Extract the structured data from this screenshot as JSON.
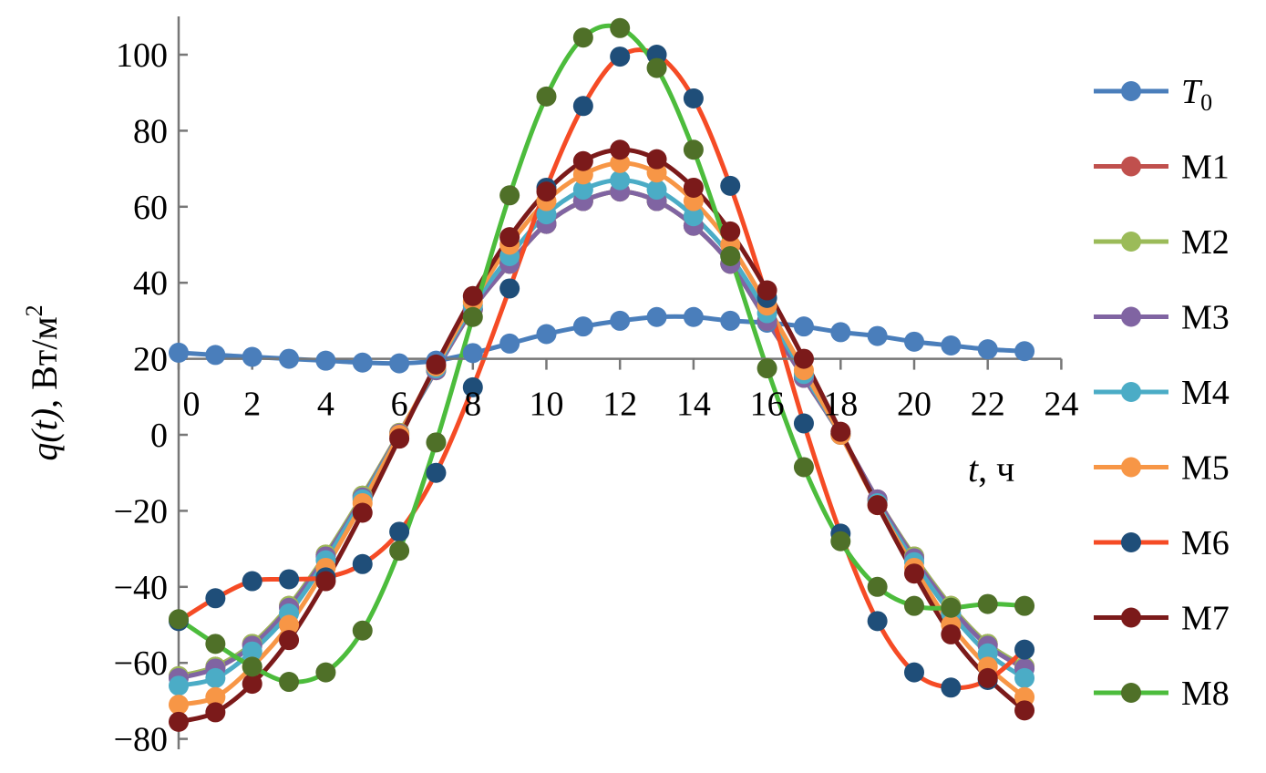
{
  "chart_data": {
    "type": "line",
    "title": "",
    "xlabel_italic": "t",
    "xlabel_unit": "ч",
    "ylabel_italic": "q(t)",
    "ylabel_unit": "Вт/м",
    "ylabel_unit_sup": "2",
    "xlim": [
      0,
      24
    ],
    "ylim": [
      -80,
      110
    ],
    "x_axis_crosses_at": 20,
    "xticks": [
      "0",
      "2",
      "4",
      "6",
      "8",
      "10",
      "12",
      "14",
      "16",
      "18",
      "20",
      "22",
      "24"
    ],
    "yticks": [
      "−80",
      "−60",
      "−40",
      "−20",
      "0",
      "20",
      "40",
      "60",
      "80",
      "100"
    ],
    "grid": false,
    "legend_position": "right",
    "x": [
      0,
      1,
      2,
      3,
      4,
      5,
      6,
      7,
      8,
      9,
      10,
      11,
      12,
      13,
      14,
      15,
      16,
      17,
      18,
      19,
      20,
      21,
      22,
      23
    ],
    "series": [
      {
        "name": "T",
        "name_sub": "0",
        "line_color": "#4a7ebb",
        "marker_color": "#4a7ebb",
        "values": [
          21.6,
          21,
          20.5,
          20,
          19.5,
          19,
          18.8,
          19.5,
          21.5,
          24,
          26.5,
          28.5,
          30,
          31,
          31,
          30,
          29.5,
          28.5,
          27,
          26,
          24.5,
          23.5,
          22.5,
          22
        ]
      },
      {
        "name": "M1",
        "line_color": "#c0504d",
        "marker_color": "#c0504d",
        "values": [
          -63.5,
          -61,
          -55,
          -45,
          -31.5,
          -16,
          0.5,
          17,
          33,
          45,
          55.5,
          61.5,
          64,
          61.5,
          55,
          45,
          30,
          15,
          0,
          -17,
          -32,
          -45,
          -55,
          -61
        ]
      },
      {
        "name": "M2",
        "line_color": "#9bbb59",
        "marker_color": "#9bbb59",
        "values": [
          -63.5,
          -61,
          -55,
          -45,
          -31.5,
          -16,
          0.5,
          17,
          33,
          45,
          55.5,
          61.5,
          64,
          61.5,
          55,
          45,
          30,
          15,
          0,
          -17,
          -32,
          -45,
          -55,
          -61
        ]
      },
      {
        "name": "M3",
        "line_color": "#8064a2",
        "marker_color": "#8064a2",
        "values": [
          -64,
          -61.5,
          -55.5,
          -45.5,
          -32,
          -16.5,
          0.3,
          17,
          33,
          45,
          55.5,
          61.5,
          64,
          61.5,
          55,
          45,
          30,
          15,
          0,
          -17,
          -32.5,
          -45.5,
          -55.5,
          -61.5
        ]
      },
      {
        "name": "M4",
        "line_color": "#4bacc6",
        "marker_color": "#4bacc6",
        "values": [
          -66,
          -64,
          -57,
          -47,
          -33,
          -17,
          0,
          17.5,
          34,
          47,
          58,
          64.5,
          67,
          64.5,
          57.5,
          47,
          32,
          16,
          0,
          -18,
          -33.5,
          -47,
          -57.5,
          -64
        ]
      },
      {
        "name": "M5",
        "line_color": "#f79646",
        "marker_color": "#f79646",
        "values": [
          -71,
          -69,
          -61,
          -50,
          -35,
          -18,
          0,
          18,
          35,
          50,
          61.5,
          68.5,
          71.5,
          69,
          61.5,
          50,
          34,
          17,
          0,
          -18.5,
          -35,
          -50,
          -61,
          -69
        ]
      },
      {
        "name": "M6",
        "line_color": "#f54b25",
        "marker_color": "#1f4e79",
        "values": [
          -49,
          -43,
          -38.5,
          -38,
          -37.5,
          -34,
          -25.5,
          -10,
          12.5,
          38.5,
          65,
          86.5,
          99.5,
          100,
          88.5,
          65.5,
          36,
          3,
          -26,
          -49,
          -62.5,
          -66.5,
          -64.5,
          -56.5
        ]
      },
      {
        "name": "M7",
        "line_color": "#7b1a1a",
        "marker_color": "#7b1a1a",
        "values": [
          -75.5,
          -73,
          -65.5,
          -54,
          -38.5,
          -20.5,
          -1,
          18.5,
          36.5,
          52,
          64,
          72,
          75,
          72.5,
          65,
          53.5,
          38,
          20,
          0.8,
          -18.5,
          -36.5,
          -52.5,
          -64,
          -72.5
        ]
      },
      {
        "name": "M8",
        "line_color": "#4cbc3c",
        "marker_color": "#4f7028",
        "values": [
          -48.5,
          -55,
          -61,
          -65,
          -62.5,
          -51.5,
          -30.5,
          -2,
          31,
          63,
          89,
          104.5,
          107,
          96.5,
          75,
          47,
          17.5,
          -8.5,
          -28,
          -40,
          -45,
          -45.5,
          -44.5,
          -45
        ]
      }
    ]
  }
}
